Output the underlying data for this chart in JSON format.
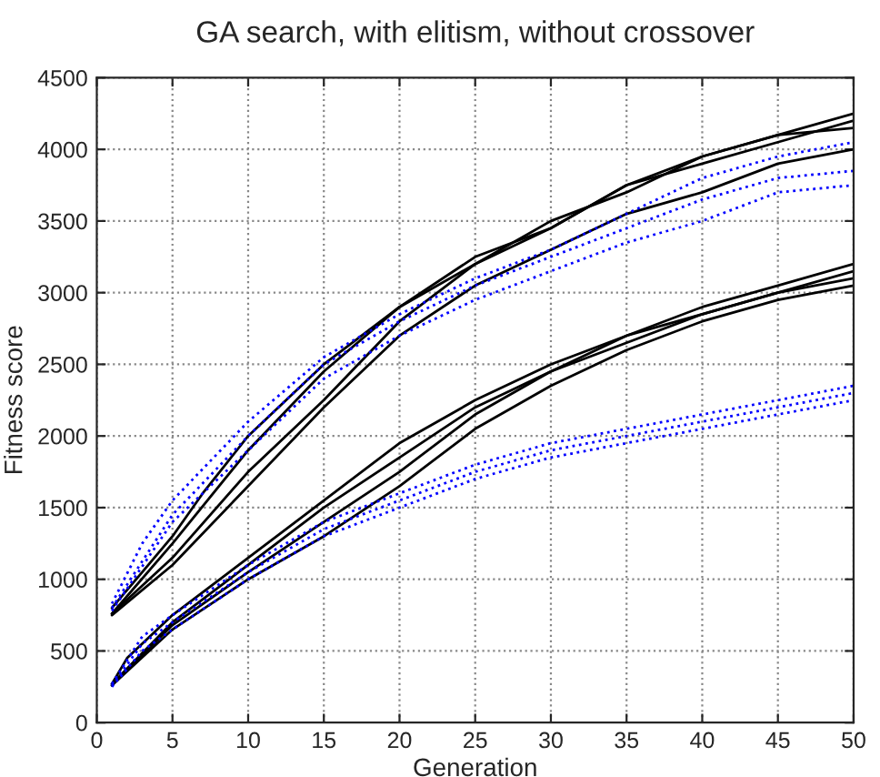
{
  "chart_data": {
    "type": "line",
    "title": "GA search, with elitism, without crossover",
    "xlabel": "Generation",
    "ylabel": "Fitness score",
    "xlim": [
      0,
      50
    ],
    "ylim": [
      0,
      4500
    ],
    "xticks": [
      0,
      5,
      10,
      15,
      20,
      25,
      30,
      35,
      40,
      45,
      50
    ],
    "yticks": [
      0,
      500,
      1000,
      1500,
      2000,
      2500,
      3000,
      3500,
      4000,
      4500
    ],
    "grid": true,
    "legend": false,
    "series": [
      {
        "color": "#000000",
        "line_style": "solid",
        "x": [
          1,
          3,
          5,
          7,
          10,
          15,
          20,
          25,
          30,
          35,
          40,
          45,
          50
        ],
        "values": [
          800,
          1050,
          1300,
          1600,
          2000,
          2500,
          2900,
          3200,
          3500,
          3700,
          3950,
          4100,
          4250
        ]
      },
      {
        "color": "#000000",
        "line_style": "solid",
        "x": [
          1,
          5,
          10,
          15,
          20,
          25,
          30,
          35,
          40,
          45,
          50
        ],
        "values": [
          760,
          1250,
          1900,
          2450,
          2900,
          3250,
          3450,
          3750,
          3950,
          4100,
          4150
        ]
      },
      {
        "color": "#000000",
        "line_style": "solid",
        "x": [
          1,
          5,
          10,
          15,
          20,
          25,
          30,
          35,
          40,
          45,
          50
        ],
        "values": [
          760,
          1150,
          1750,
          2250,
          2800,
          3200,
          3450,
          3750,
          3900,
          4050,
          4200
        ]
      },
      {
        "color": "#000000",
        "line_style": "solid",
        "x": [
          1,
          5,
          10,
          15,
          20,
          25,
          30,
          35,
          40,
          45,
          50
        ],
        "values": [
          750,
          1100,
          1650,
          2200,
          2700,
          3050,
          3300,
          3550,
          3700,
          3900,
          4000
        ]
      },
      {
        "color": "#0000ff",
        "line_style": "dotted",
        "x": [
          1,
          3,
          5,
          10,
          15,
          20,
          25,
          30,
          35,
          40,
          45,
          50
        ],
        "values": [
          830,
          1250,
          1550,
          2100,
          2550,
          2850,
          3100,
          3300,
          3550,
          3800,
          3950,
          4050
        ]
      },
      {
        "color": "#0000ff",
        "line_style": "dotted",
        "x": [
          1,
          5,
          10,
          15,
          20,
          25,
          30,
          35,
          40,
          45,
          50
        ],
        "values": [
          800,
          1450,
          2000,
          2500,
          2800,
          3050,
          3250,
          3450,
          3650,
          3800,
          3850
        ]
      },
      {
        "color": "#0000ff",
        "line_style": "dotted",
        "x": [
          1,
          5,
          10,
          15,
          20,
          25,
          30,
          35,
          40,
          45,
          50
        ],
        "values": [
          780,
          1400,
          1900,
          2400,
          2700,
          2950,
          3150,
          3350,
          3500,
          3700,
          3750
        ]
      },
      {
        "color": "#000000",
        "line_style": "solid",
        "x": [
          1,
          2,
          5,
          10,
          15,
          20,
          25,
          30,
          35,
          40,
          45,
          50
        ],
        "values": [
          270,
          450,
          750,
          1150,
          1550,
          1950,
          2250,
          2500,
          2700,
          2900,
          3050,
          3200
        ]
      },
      {
        "color": "#000000",
        "line_style": "solid",
        "x": [
          1,
          5,
          10,
          15,
          20,
          25,
          30,
          35,
          40,
          45,
          50
        ],
        "values": [
          270,
          700,
          1100,
          1500,
          1850,
          2200,
          2450,
          2700,
          2850,
          3000,
          3150
        ]
      },
      {
        "color": "#000000",
        "line_style": "solid",
        "x": [
          1,
          5,
          10,
          15,
          20,
          25,
          30,
          35,
          40,
          45,
          50
        ],
        "values": [
          260,
          680,
          1050,
          1400,
          1750,
          2150,
          2450,
          2650,
          2850,
          3000,
          3100
        ]
      },
      {
        "color": "#000000",
        "line_style": "solid",
        "x": [
          1,
          5,
          10,
          15,
          20,
          25,
          30,
          35,
          40,
          45,
          50
        ],
        "values": [
          260,
          650,
          1000,
          1300,
          1650,
          2050,
          2350,
          2600,
          2800,
          2950,
          3050
        ]
      },
      {
        "color": "#0000ff",
        "line_style": "dotted",
        "x": [
          1,
          3,
          5,
          10,
          15,
          20,
          25,
          30,
          35,
          40,
          45,
          50
        ],
        "values": [
          270,
          600,
          750,
          1100,
          1400,
          1600,
          1800,
          1950,
          2050,
          2150,
          2250,
          2350
        ]
      },
      {
        "color": "#0000ff",
        "line_style": "dotted",
        "x": [
          1,
          3,
          5,
          10,
          15,
          20,
          25,
          30,
          35,
          40,
          45,
          50
        ],
        "values": [
          260,
          550,
          700,
          1050,
          1350,
          1550,
          1750,
          1900,
          2000,
          2100,
          2200,
          2300
        ]
      },
      {
        "color": "#0000ff",
        "line_style": "dotted",
        "x": [
          1,
          3,
          5,
          10,
          15,
          20,
          25,
          30,
          35,
          40,
          45,
          50
        ],
        "values": [
          250,
          500,
          650,
          1000,
          1300,
          1500,
          1700,
          1850,
          1950,
          2050,
          2150,
          2250
        ]
      }
    ]
  }
}
